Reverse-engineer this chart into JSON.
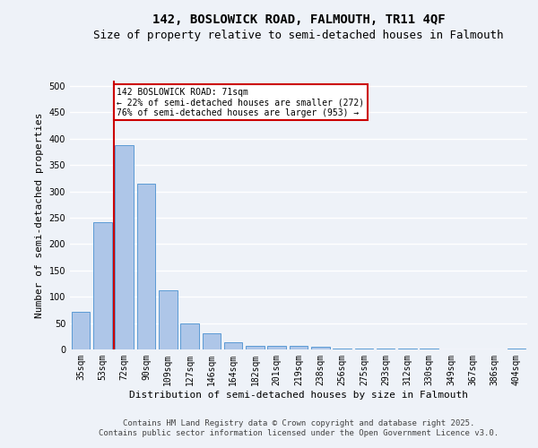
{
  "title_line1": "142, BOSLOWICK ROAD, FALMOUTH, TR11 4QF",
  "title_line2": "Size of property relative to semi-detached houses in Falmouth",
  "xlabel": "Distribution of semi-detached houses by size in Falmouth",
  "ylabel": "Number of semi-detached properties",
  "categories": [
    "35sqm",
    "53sqm",
    "72sqm",
    "90sqm",
    "109sqm",
    "127sqm",
    "146sqm",
    "164sqm",
    "182sqm",
    "201sqm",
    "219sqm",
    "238sqm",
    "256sqm",
    "275sqm",
    "293sqm",
    "312sqm",
    "330sqm",
    "349sqm",
    "367sqm",
    "386sqm",
    "404sqm"
  ],
  "values": [
    72,
    242,
    388,
    315,
    113,
    50,
    30,
    13,
    7,
    7,
    7,
    5,
    2,
    1,
    1,
    1,
    1,
    0,
    0,
    0,
    2
  ],
  "bar_color": "#aec6e8",
  "bar_edge_color": "#5b9bd5",
  "property_bin_index": 2,
  "red_line_color": "#cc0000",
  "annotation_text": "142 BOSLOWICK ROAD: 71sqm\n← 22% of semi-detached houses are smaller (272)\n76% of semi-detached houses are larger (953) →",
  "annotation_box_color": "#ffffff",
  "annotation_box_edge": "#cc0000",
  "ylim": [
    0,
    510
  ],
  "yticks": [
    0,
    50,
    100,
    150,
    200,
    250,
    300,
    350,
    400,
    450,
    500
  ],
  "footer_line1": "Contains HM Land Registry data © Crown copyright and database right 2025.",
  "footer_line2": "Contains public sector information licensed under the Open Government Licence v3.0.",
  "background_color": "#eef2f8",
  "plot_bg_color": "#eef2f8",
  "grid_color": "#ffffff",
  "title_fontsize": 10,
  "subtitle_fontsize": 9,
  "axis_label_fontsize": 8,
  "tick_fontsize": 7,
  "annotation_fontsize": 7,
  "footer_fontsize": 6.5
}
